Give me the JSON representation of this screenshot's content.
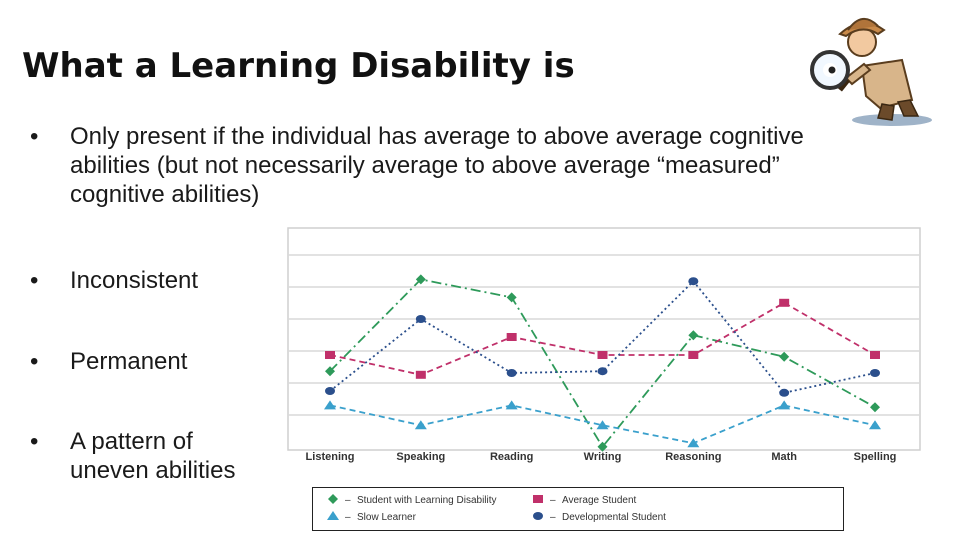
{
  "slide": {
    "title": "What a Learning Disability is",
    "bullets": [
      {
        "marker": "•",
        "text": "Only present if the individual has average to above average cognitive abilities  (but not necessarily average to above average “measured” cognitive abilities)"
      },
      {
        "marker": "•",
        "text": "Inconsistent"
      },
      {
        "marker": "•",
        "text": "Permanent"
      },
      {
        "marker": "•",
        "text": "A pattern of uneven abilities"
      }
    ],
    "illustration": "detective-with-magnifying-glass-icon"
  },
  "chart_data": {
    "type": "line",
    "categories": [
      "Listening",
      "Speaking",
      "Reading",
      "Writing",
      "Reasoning",
      "Math",
      "Spelling"
    ],
    "grid": true,
    "legend_placement": "bottom",
    "series": [
      {
        "name": "Student with Learning Disability",
        "color": "#2e9a5a",
        "marker": "diamond",
        "style": "dash-dot",
        "values": [
          4.1,
          9.2,
          8.2,
          -0.1,
          6.1,
          4.9,
          2.1
        ]
      },
      {
        "name": "Average Student",
        "color": "#c0306a",
        "marker": "square",
        "style": "dashed",
        "values": [
          5.0,
          3.9,
          6.0,
          5.0,
          5.0,
          7.9,
          5.0
        ]
      },
      {
        "name": "Slow Learner",
        "color": "#3aa0cc",
        "marker": "triangle",
        "style": "dashed",
        "values": [
          2.2,
          1.1,
          2.2,
          1.1,
          0.1,
          2.2,
          1.1
        ]
      },
      {
        "name": "Developmental Student",
        "color": "#2b4f8c",
        "marker": "circle",
        "style": "dotted",
        "values": [
          3.0,
          7.0,
          4.0,
          4.1,
          9.1,
          2.9,
          4.0
        ]
      }
    ]
  }
}
